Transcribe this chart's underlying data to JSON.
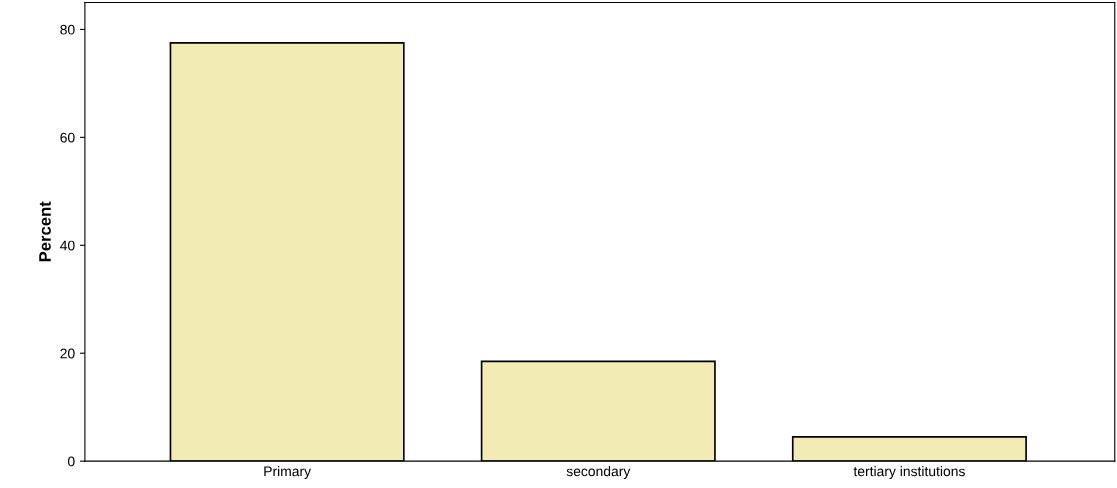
{
  "chart_data": {
    "type": "bar",
    "ylabel": "Percent",
    "categories": [
      "Primary",
      "secondary",
      "tertiary institutions"
    ],
    "values": [
      77.5,
      18.5,
      4.5
    ],
    "color": "#f2ebb3",
    "ylim": [
      0,
      85
    ],
    "yticks": [
      0,
      20,
      40,
      60,
      80
    ],
    "grid": false
  }
}
